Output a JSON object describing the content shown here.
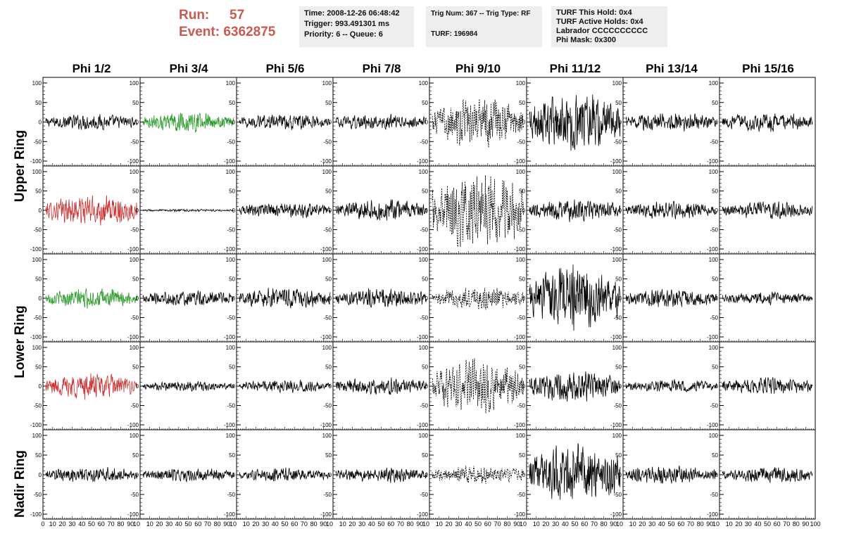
{
  "header": {
    "run_label": "Run:",
    "run_value": "57",
    "event_label": "Event:",
    "event_value": "6362875"
  },
  "info_box_1": {
    "time": "Time: 2008-12-26 06:48:42",
    "trigger": "Trigger: 993.491301 ms",
    "priority": "Priority: 6 -- Queue: 6"
  },
  "info_box_2": {
    "trig": "Trig Num: 367 -- Trig Type: RF",
    "turf": "TURF: 196984"
  },
  "info_box_3": {
    "this_hold": "TURF This Hold: 0x4",
    "active_holds": "TURF Active Holds: 0x4",
    "labrador": "Labrador CCCCCCCCCC",
    "phi_mask": "Phi Mask: 0x300"
  },
  "columns": [
    "Phi 1/2",
    "Phi 3/4",
    "Phi 5/6",
    "Phi 7/8",
    "Phi 9/10",
    "Phi 11/12",
    "Phi 13/14",
    "Phi 15/16"
  ],
  "ring_labels": [
    "Upper Ring",
    "Lower Ring",
    "Nadir Ring"
  ],
  "colors": {
    "title_red": "#c85a50",
    "trace_black": "#000000",
    "trace_green": "#2a9a2a",
    "trace_red": "#cc3333",
    "info_bg": "#eeeeee"
  },
  "chart_data": {
    "type": "line",
    "description_rows": [
      "Upper Ring (top)",
      "Upper Ring (bottom)",
      "Lower Ring (top)",
      "Lower Ring (bottom)",
      "Nadir Ring"
    ],
    "xlim": [
      0,
      100
    ],
    "ylim": [
      -100,
      100
    ],
    "y_ticks": [
      100,
      50,
      0,
      -50,
      -100
    ],
    "x_ticks": [
      0,
      10,
      20,
      30,
      40,
      50,
      60,
      70,
      80,
      90,
      100
    ],
    "x_tick_labels_first": [
      "0",
      "10",
      "20",
      "30",
      "40",
      "50",
      "60",
      "70",
      "80",
      "90",
      "10"
    ],
    "x_tick_labels_rest": [
      "10",
      "20",
      "30",
      "40",
      "50",
      "60",
      "70",
      "80",
      "90",
      "10"
    ],
    "x_tick_labels_last_panel": [
      "10",
      "20",
      "30",
      "40",
      "50",
      "60",
      "70",
      "80",
      "90",
      "100"
    ],
    "panels": [
      [
        {
          "amplitude": 18,
          "color": "black",
          "style": "solid"
        },
        {
          "amplitude": 22,
          "color": "green",
          "style": "solid"
        },
        {
          "amplitude": 18,
          "color": "black",
          "style": "solid"
        },
        {
          "amplitude": 18,
          "color": "black",
          "style": "solid"
        },
        {
          "amplitude": 55,
          "color": "black",
          "style": "dashed"
        },
        {
          "amplitude": 65,
          "color": "black",
          "style": "solid"
        },
        {
          "amplitude": 22,
          "color": "black",
          "style": "solid"
        },
        {
          "amplitude": 22,
          "color": "black",
          "style": "solid"
        }
      ],
      [
        {
          "amplitude": 35,
          "color": "red",
          "style": "solid"
        },
        {
          "amplitude": 3,
          "color": "black",
          "style": "solid"
        },
        {
          "amplitude": 18,
          "color": "black",
          "style": "solid"
        },
        {
          "amplitude": 25,
          "color": "black",
          "style": "solid"
        },
        {
          "amplitude": 90,
          "color": "black",
          "style": "dashed"
        },
        {
          "amplitude": 25,
          "color": "black",
          "style": "solid"
        },
        {
          "amplitude": 20,
          "color": "black",
          "style": "solid"
        },
        {
          "amplitude": 20,
          "color": "black",
          "style": "solid"
        }
      ],
      [
        {
          "amplitude": 22,
          "color": "green",
          "style": "solid"
        },
        {
          "amplitude": 18,
          "color": "black",
          "style": "solid"
        },
        {
          "amplitude": 25,
          "color": "black",
          "style": "solid"
        },
        {
          "amplitude": 22,
          "color": "black",
          "style": "solid"
        },
        {
          "amplitude": 25,
          "color": "black",
          "style": "dashed"
        },
        {
          "amplitude": 75,
          "color": "black",
          "style": "solid"
        },
        {
          "amplitude": 22,
          "color": "black",
          "style": "solid"
        },
        {
          "amplitude": 15,
          "color": "black",
          "style": "solid"
        }
      ],
      [
        {
          "amplitude": 30,
          "color": "red",
          "style": "solid"
        },
        {
          "amplitude": 12,
          "color": "black",
          "style": "solid"
        },
        {
          "amplitude": 15,
          "color": "black",
          "style": "solid"
        },
        {
          "amplitude": 20,
          "color": "black",
          "style": "solid"
        },
        {
          "amplitude": 60,
          "color": "black",
          "style": "dashed"
        },
        {
          "amplitude": 35,
          "color": "black",
          "style": "solid"
        },
        {
          "amplitude": 15,
          "color": "black",
          "style": "solid"
        },
        {
          "amplitude": 20,
          "color": "black",
          "style": "solid"
        }
      ],
      [
        {
          "amplitude": 18,
          "color": "black",
          "style": "solid"
        },
        {
          "amplitude": 15,
          "color": "black",
          "style": "solid"
        },
        {
          "amplitude": 15,
          "color": "black",
          "style": "solid"
        },
        {
          "amplitude": 18,
          "color": "black",
          "style": "solid"
        },
        {
          "amplitude": 20,
          "color": "black",
          "style": "dashed"
        },
        {
          "amplitude": 70,
          "color": "black",
          "style": "solid"
        },
        {
          "amplitude": 20,
          "color": "black",
          "style": "solid"
        },
        {
          "amplitude": 18,
          "color": "black",
          "style": "solid"
        }
      ]
    ]
  }
}
